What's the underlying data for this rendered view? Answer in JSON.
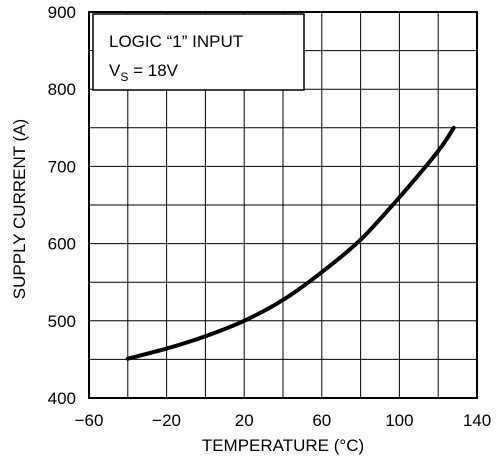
{
  "chart_data": {
    "type": "line",
    "xlabel": "TEMPERATURE (°C)",
    "ylabel": "SUPPLY CURRENT (A)",
    "xlim": [
      -60,
      140
    ],
    "ylim": [
      400,
      900
    ],
    "x_ticks": [
      -60,
      -20,
      20,
      60,
      100,
      140
    ],
    "y_ticks": [
      400,
      500,
      600,
      700,
      800,
      900
    ],
    "grid": true,
    "annotation": {
      "line1": "LOGIC “1” INPUT",
      "line2_prefix": "V",
      "line2_sub": "S",
      "line2_suffix": " = 18V"
    },
    "series": [
      {
        "x": [
          -40,
          -20,
          0,
          20,
          40,
          60,
          80,
          100,
          120,
          128
        ],
        "y": [
          451,
          464,
          480,
          500,
          527,
          563,
          605,
          660,
          720,
          750
        ]
      }
    ]
  }
}
